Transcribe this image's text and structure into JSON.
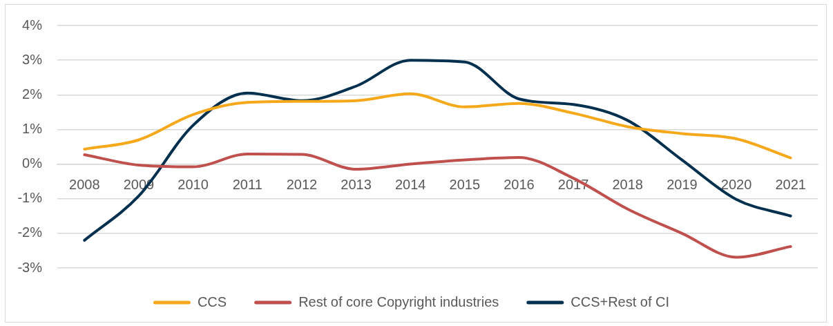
{
  "chart_data": {
    "type": "line",
    "categories": [
      "2008",
      "2009",
      "2010",
      "2011",
      "2012",
      "2013",
      "2014",
      "2015",
      "2016",
      "2017",
      "2018",
      "2019",
      "2020",
      "2021"
    ],
    "series": [
      {
        "name": "CCS",
        "color": "#f6a81b",
        "values": [
          0.43,
          0.7,
          1.43,
          1.78,
          1.81,
          1.83,
          2.03,
          1.65,
          1.75,
          1.47,
          1.08,
          0.88,
          0.73,
          0.18
        ]
      },
      {
        "name": "Rest of core Copyright industries",
        "color": "#c0504d",
        "values": [
          0.27,
          -0.03,
          -0.08,
          0.29,
          0.28,
          -0.15,
          0.0,
          0.12,
          0.19,
          -0.41,
          -1.3,
          -2.0,
          -2.69,
          -2.38
        ]
      },
      {
        "name": "CCS+Rest of CI",
        "color": "#00304e",
        "values": [
          -2.2,
          -0.92,
          1.12,
          2.05,
          1.83,
          2.25,
          3.0,
          2.95,
          1.88,
          1.72,
          1.26,
          0.12,
          -1.02,
          -1.5
        ]
      }
    ],
    "ylim": [
      -3,
      4
    ],
    "yticks": [
      {
        "value": 4,
        "label": "4%"
      },
      {
        "value": 3,
        "label": "3%"
      },
      {
        "value": 2,
        "label": "2%"
      },
      {
        "value": 1,
        "label": "1%"
      },
      {
        "value": 0,
        "label": "0%"
      },
      {
        "value": -1,
        "label": "-1%"
      },
      {
        "value": -2,
        "label": "-2%"
      },
      {
        "value": -3,
        "label": "-3%"
      }
    ],
    "grid": "y",
    "legend": "bottom",
    "marker": "none"
  }
}
